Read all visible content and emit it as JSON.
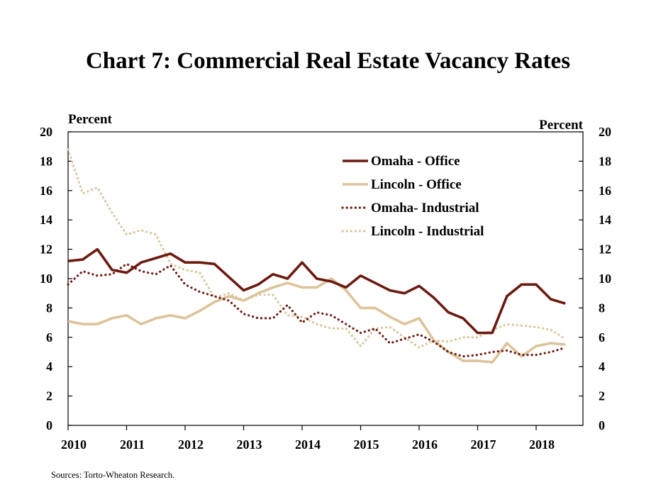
{
  "title": "Chart 7: Commercial Real Estate Vacancy Rates",
  "source": "Sources: Torto-Wheaton Research.",
  "chart_data": {
    "type": "line",
    "title": "Chart 7: Commercial Real Estate Vacancy Rates",
    "ylabel_left": "Percent",
    "ylabel_right": "Percent",
    "xlim": [
      2010,
      2018.8
    ],
    "ylim": [
      0,
      20
    ],
    "y_ticks": [
      0,
      2,
      4,
      6,
      8,
      10,
      12,
      14,
      16,
      18,
      20
    ],
    "x_ticks": [
      2010,
      2011,
      2012,
      2013,
      2014,
      2015,
      2016,
      2017,
      2018
    ],
    "x_tick_labels": [
      "2010",
      "2011",
      "2012",
      "2013",
      "2014",
      "2015",
      "2016",
      "2017",
      "2018"
    ],
    "grid": false,
    "legend_position": "top-right",
    "x": [
      2010.0,
      2010.25,
      2010.5,
      2010.75,
      2011.0,
      2011.25,
      2011.5,
      2011.75,
      2012.0,
      2012.25,
      2012.5,
      2012.75,
      2013.0,
      2013.25,
      2013.5,
      2013.75,
      2014.0,
      2014.25,
      2014.5,
      2014.75,
      2015.0,
      2015.25,
      2015.5,
      2015.75,
      2016.0,
      2016.25,
      2016.5,
      2016.75,
      2017.0,
      2017.25,
      2017.5,
      2017.75,
      2018.0,
      2018.25,
      2018.5
    ],
    "series": [
      {
        "name": "Omaha - Office",
        "color": "#6b1a10",
        "style": "solid",
        "values": [
          11.2,
          11.3,
          12.0,
          10.6,
          10.4,
          11.1,
          11.4,
          11.7,
          11.1,
          11.1,
          11.0,
          10.1,
          9.2,
          9.6,
          10.3,
          10.0,
          11.1,
          10.0,
          9.8,
          9.4,
          10.2,
          9.7,
          9.2,
          9.0,
          9.5,
          8.7,
          7.7,
          7.3,
          6.3,
          6.3,
          8.8,
          9.6,
          9.6,
          8.6,
          8.3
        ]
      },
      {
        "name": "Lincoln - Office",
        "color": "#dcc39a",
        "style": "solid",
        "values": [
          7.1,
          6.9,
          6.9,
          7.3,
          7.5,
          6.9,
          7.3,
          7.5,
          7.3,
          7.8,
          8.4,
          8.8,
          8.5,
          9.0,
          9.4,
          9.7,
          9.4,
          9.4,
          10.0,
          9.2,
          8.0,
          8.0,
          7.4,
          6.9,
          7.3,
          5.8,
          5.0,
          4.4,
          4.4,
          4.3,
          5.6,
          4.7,
          5.4,
          5.6,
          5.5
        ]
      },
      {
        "name": "Omaha- Industrial",
        "color": "#6b1a10",
        "style": "dotted",
        "values": [
          9.6,
          10.5,
          10.2,
          10.3,
          11.0,
          10.5,
          10.3,
          10.9,
          9.6,
          9.1,
          8.8,
          8.5,
          7.6,
          7.3,
          7.3,
          8.2,
          7.0,
          7.7,
          7.5,
          6.9,
          6.3,
          6.6,
          5.6,
          5.9,
          6.2,
          5.7,
          5.0,
          4.7,
          4.8,
          5.0,
          5.1,
          4.8,
          4.8,
          5.0,
          5.3
        ]
      },
      {
        "name": "Lincoln - Industrial",
        "color": "#dcc39a",
        "style": "dotted",
        "values": [
          18.8,
          15.8,
          16.2,
          14.5,
          13.0,
          13.3,
          13.0,
          11.0,
          10.6,
          10.4,
          8.7,
          9.0,
          8.5,
          8.9,
          8.9,
          7.5,
          7.4,
          6.9,
          6.6,
          6.6,
          5.4,
          6.6,
          6.7,
          6.0,
          5.3,
          5.8,
          5.7,
          6.0,
          6.0,
          6.5,
          6.9,
          6.8,
          6.7,
          6.5,
          5.9
        ]
      }
    ]
  }
}
